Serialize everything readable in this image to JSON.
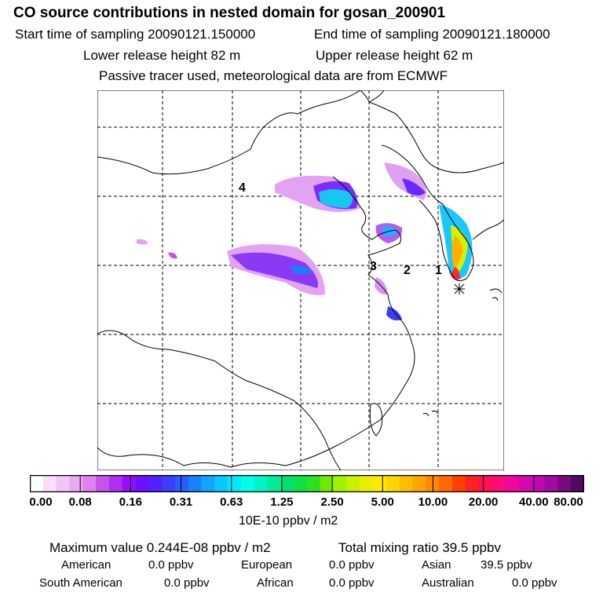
{
  "header": {
    "title": "CO  source contributions in nested domain for gosan_200901",
    "start_label": "Start time of sampling 20090121.150000",
    "end_label": "End time of sampling 20090121.180000",
    "lower_label": "Lower release height   82 m",
    "upper_label": "Upper release height   62 m",
    "tracer_note": "Passive tracer used, meteorological data are from ECMWF"
  },
  "map": {
    "region_labels": [
      "1",
      "2",
      "3",
      "4"
    ]
  },
  "colorbar": {
    "tick_labels": [
      "0.00",
      "0.08",
      "0.16",
      "0.31",
      "0.63",
      "1.25",
      "2.50",
      "5.00",
      "10.00",
      "20.00",
      "40.00",
      "80.00"
    ],
    "colors": [
      "#ffffff",
      "#f9ddfb",
      "#f2c4f7",
      "#eaa9f3",
      "#dd82ef",
      "#c455ea",
      "#b22ef3",
      "#9110f7",
      "#6c10ff",
      "#5022ff",
      "#3d3cff",
      "#2a5cff",
      "#1a80ff",
      "#12a4ff",
      "#08c8ff",
      "#00eaff",
      "#00ffe8",
      "#00f5c0",
      "#00ea98",
      "#00e070",
      "#10e048",
      "#30e020",
      "#70e800",
      "#a0f000",
      "#c8f000",
      "#e8f000",
      "#ffe800",
      "#ffd400",
      "#ffbe00",
      "#ffa400",
      "#ff8800",
      "#ff6a00",
      "#ff4000",
      "#ff2020",
      "#ff1050",
      "#ff0a78",
      "#f0089a",
      "#d808a8",
      "#c008b0",
      "#a00aa0",
      "#780a80",
      "#500a60"
    ],
    "unit": "10E-10 ppbv / m2"
  },
  "stats": {
    "max_value": "Maximum value  0.244E-08 ppbv / m2",
    "total_mixing": "Total mixing ratio       39.5 ppbv"
  },
  "regions": [
    {
      "name": "American",
      "value": "0.0 ppbv"
    },
    {
      "name": "European",
      "value": "0.0 ppbv"
    },
    {
      "name": "Asian",
      "value": "39.5 ppbv"
    },
    {
      "name": "South American",
      "value": "0.0 ppbv"
    },
    {
      "name": "African",
      "value": "0.0 ppbv"
    },
    {
      "name": "Australian",
      "value": "0.0 ppbv"
    }
  ]
}
